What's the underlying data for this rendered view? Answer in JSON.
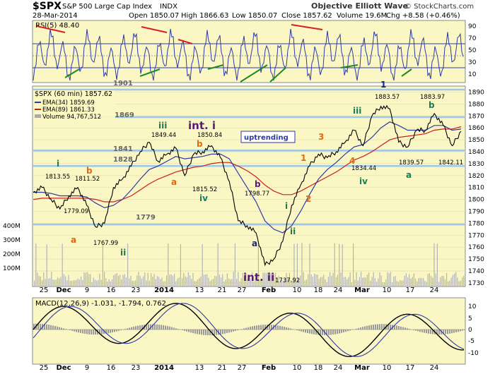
{
  "header": {
    "symbol": "$SPX",
    "name": "S&P 500 Large Cap Index",
    "exchange": "INDX",
    "date": "28-Mar-2014",
    "open": "Open 1850.07",
    "high": "High 1866.63",
    "low": "Low 1850.07",
    "close": "Close 1857.62",
    "volume": "Volume 19.6M",
    "change": "Chg +8.58 (+0.46%)",
    "watermark": "Objective Elliott Wave",
    "copyright": "© StockCharts.com"
  },
  "rsi": {
    "label": "RSI(5) 48.40",
    "ticks": [
      "90",
      "70",
      "50",
      "30",
      "10"
    ]
  },
  "price_legend": {
    "main": "$SPX (60 min) 1857.62",
    "ema34": "EMA(34) 1859.69",
    "ema89": "EMA(89) 1861.33",
    "volume": "Volume 94,767,512"
  },
  "macd": {
    "label": "MACD(12,26,9) -1.031, -1.794, 0.762",
    "ticks": [
      "10",
      "5",
      "0",
      "-5",
      "-10"
    ]
  },
  "annotations": {
    "uptrending": "uptrending",
    "level_1901": "1901",
    "level_1869": "1869",
    "level_1841": "1841",
    "level_1828": "1828",
    "level_1779": "1779",
    "wave_i_low": "i",
    "wave_i_low_val": "1813.55",
    "wave_b1": "b",
    "wave_b1_val": "1811.52",
    "wave_a1": "a",
    "wave_a1_val": "1779.09",
    "wave_ii": "ii",
    "wave_ii_val": "1767.99",
    "wave_iii": "iii",
    "wave_iii_val": "1849.44",
    "wave_a2": "a",
    "wave_b2": "b",
    "wave_int_i": "int. i",
    "wave_int_i_val": "1850.84",
    "wave_iv": "iv",
    "wave_iv_val": "1815.52",
    "wave_b3": "b",
    "wave_b3_val": "1798.77",
    "wave_a3": "a",
    "wave_int_ii": "int. ii",
    "wave_int_ii_val": "1737.92",
    "wave_i2": "i",
    "wave_ii2": "ii",
    "wave_1o": "1",
    "wave_2o": "2",
    "wave_3o": "3",
    "wave_4o": "4",
    "wave_iii2": "iii",
    "wave_iv2": "iv",
    "wave_iv2_val": "1834.44",
    "wave_1": "1",
    "wave_1_val": "1883.57",
    "wave_a4": "a",
    "wave_a4_val": "1839.57",
    "wave_b4": "b",
    "wave_b4_val": "1883.97",
    "wave_end_val": "1842.11"
  },
  "axis": {
    "x_labels": [
      "25",
      "Dec",
      "9",
      "16",
      "23",
      "2014",
      "13",
      "21",
      "27",
      "Feb",
      "10",
      "18",
      "24",
      "Mar",
      "10",
      "17",
      "24"
    ],
    "price_ticks": [
      "1890",
      "1880",
      "1870",
      "1860",
      "1850",
      "1840",
      "1830",
      "1820",
      "1810",
      "1800",
      "1790",
      "1780",
      "1770",
      "1760",
      "1750",
      "1740",
      "1730"
    ],
    "volume_ticks": [
      "400M",
      "300M",
      "200M",
      "100M"
    ]
  },
  "colors": {
    "panel_bg": "#fbf7c4",
    "price_line": "#000000",
    "ema34": "#2d3aa8",
    "ema89": "#c8201e",
    "hlines": "#9ec8ea",
    "orange": "#e06a10",
    "green": "#1d7a55",
    "purple": "#5a1a78",
    "navy": "#1b2a70"
  },
  "chart_data": {
    "type": "line",
    "title": "$SPX S&P 500 Large Cap Index INDX",
    "x_points": [
      "Nov 25",
      "Nov 27",
      "Dec 2",
      "Dec 4",
      "Dec 6",
      "Dec 9",
      "Dec 11",
      "Dec 13",
      "Dec 16",
      "Dec 18",
      "Dec 20",
      "Dec 23",
      "Dec 27",
      "Dec 31",
      "Jan 3",
      "Jan 8",
      "Jan 10",
      "Jan 13",
      "Jan 15",
      "Jan 17",
      "Jan 21",
      "Jan 23",
      "Jan 24",
      "Jan 27",
      "Jan 29",
      "Jan 31",
      "Feb 3",
      "Feb 5",
      "Feb 7",
      "Feb 10",
      "Feb 12",
      "Feb 14",
      "Feb 18",
      "Feb 20",
      "Feb 24",
      "Feb 26",
      "Feb 28",
      "Mar 3",
      "Mar 5",
      "Mar 7",
      "Mar 11",
      "Mar 13",
      "Mar 14",
      "Mar 17",
      "Mar 19",
      "Mar 21",
      "Mar 24",
      "Mar 26",
      "Mar 28"
    ],
    "series": [
      {
        "name": "$SPX (60 min)",
        "values": [
          1806,
          1810,
          1800,
          1792,
          1803,
          1810,
          1795,
          1777,
          1780,
          1810,
          1817,
          1828,
          1840,
          1848,
          1832,
          1838,
          1843,
          1820,
          1838,
          1840,
          1845,
          1835,
          1815,
          1782,
          1778,
          1772,
          1745,
          1750,
          1765,
          1795,
          1812,
          1828,
          1838,
          1835,
          1840,
          1848,
          1858,
          1845,
          1870,
          1878,
          1876,
          1848,
          1844,
          1858,
          1858,
          1872,
          1862,
          1845,
          1857
        ]
      },
      {
        "name": "EMA(34)",
        "values": [
          1806,
          1806,
          1805,
          1803,
          1803,
          1803,
          1802,
          1797,
          1793,
          1795,
          1800,
          1808,
          1817,
          1825,
          1828,
          1832,
          1836,
          1834,
          1835,
          1836,
          1838,
          1838,
          1834,
          1822,
          1810,
          1798,
          1782,
          1775,
          1772,
          1778,
          1790,
          1804,
          1817,
          1825,
          1831,
          1838,
          1844,
          1846,
          1852,
          1860,
          1865,
          1862,
          1858,
          1858,
          1858,
          1862,
          1862,
          1858,
          1859
        ]
      },
      {
        "name": "EMA(89)",
        "values": [
          1800,
          1801,
          1801,
          1801,
          1801,
          1801,
          1801,
          1800,
          1798,
          1798,
          1800,
          1803,
          1808,
          1813,
          1817,
          1820,
          1823,
          1825,
          1827,
          1828,
          1830,
          1831,
          1831,
          1828,
          1824,
          1819,
          1812,
          1807,
          1804,
          1804,
          1807,
          1811,
          1815,
          1819,
          1823,
          1828,
          1833,
          1836,
          1840,
          1845,
          1850,
          1852,
          1853,
          1854,
          1855,
          1858,
          1859,
          1859,
          1861
        ]
      }
    ],
    "ylim": [
      1730,
      1895
    ],
    "horizontal_levels": [
      1901,
      1869,
      1841,
      1828,
      1779
    ],
    "rsi_range": [
      0,
      100
    ],
    "macd_range": [
      -13,
      13
    ],
    "grid": true
  }
}
